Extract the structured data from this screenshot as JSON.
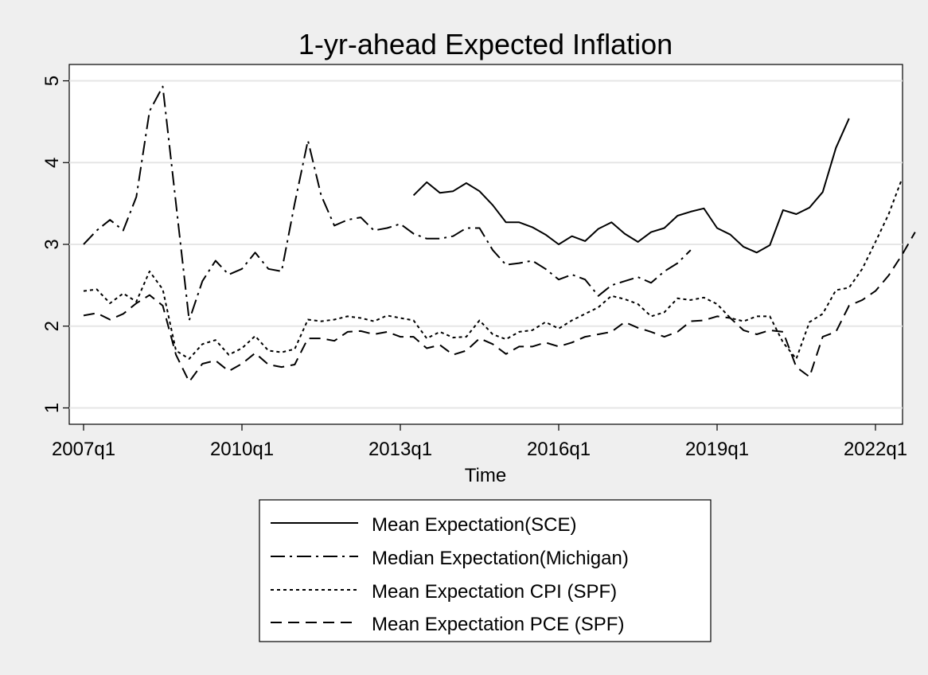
{
  "chart_data": {
    "type": "line",
    "title": "1-yr-ahead Expected Inflation",
    "xlabel": "Time",
    "ylabel": "",
    "x_tick_labels": [
      "2007q1",
      "2010q1",
      "2013q1",
      "2016q1",
      "2019q1",
      "2022q1"
    ],
    "y_tick_labels": [
      "1",
      "2",
      "3",
      "4",
      "5"
    ],
    "y_ticks": [
      1,
      2,
      3,
      4,
      5
    ],
    "ylim": [
      0.8,
      5.2
    ],
    "xlim": [
      "2007q1",
      "2022q2"
    ],
    "grid": true,
    "legend_position": "bottom",
    "series": [
      {
        "name": "Mean Expectation(SCE)",
        "style": "solid",
        "start": "2013q2",
        "values": [
          3.6,
          3.76,
          3.63,
          3.65,
          3.75,
          3.65,
          3.48,
          3.27,
          3.27,
          3.21,
          3.12,
          3.0,
          3.1,
          3.04,
          3.19,
          3.27,
          3.13,
          3.03,
          3.15,
          3.2,
          3.35,
          3.4,
          3.44,
          3.2,
          3.12,
          2.97,
          2.9,
          2.99,
          3.42,
          3.37,
          3.45,
          3.64,
          4.18,
          4.54
        ]
      },
      {
        "name": "Median Expectation(Michigan)",
        "style": "dashdot",
        "start": "2007q1",
        "values": [
          3.0,
          3.17,
          3.3,
          3.17,
          3.58,
          4.63,
          4.93,
          3.5,
          2.07,
          2.55,
          2.8,
          2.63,
          2.7,
          2.9,
          2.7,
          2.67,
          3.5,
          4.27,
          3.6,
          3.23,
          3.3,
          3.33,
          3.17,
          3.2,
          3.25,
          3.13,
          3.07,
          3.07,
          3.1,
          3.2,
          3.2,
          2.93,
          2.75,
          2.77,
          2.8,
          2.7,
          2.57,
          2.63,
          2.57,
          2.37,
          2.5,
          2.55,
          2.6,
          2.53,
          2.67,
          2.77,
          2.93
        ]
      },
      {
        "name": "Mean Expectation CPI (SPF)",
        "style": "dotted",
        "start": "2007q1",
        "values": [
          2.43,
          2.45,
          2.28,
          2.4,
          2.3,
          2.67,
          2.45,
          1.7,
          1.6,
          1.78,
          1.83,
          1.65,
          1.73,
          1.88,
          1.7,
          1.68,
          1.72,
          2.08,
          2.06,
          2.08,
          2.12,
          2.1,
          2.06,
          2.13,
          2.1,
          2.07,
          1.85,
          1.93,
          1.86,
          1.87,
          2.07,
          1.9,
          1.84,
          1.93,
          1.95,
          2.05,
          1.97,
          2.07,
          2.15,
          2.23,
          2.37,
          2.33,
          2.27,
          2.12,
          2.17,
          2.34,
          2.32,
          2.35,
          2.27,
          2.1,
          2.06,
          2.12,
          2.12,
          1.8,
          1.6,
          2.05,
          2.15,
          2.44,
          2.47,
          2.7,
          3.03,
          3.37,
          3.8
        ]
      },
      {
        "name": "Mean Expectation PCE (SPF)",
        "style": "dashed",
        "start": "2007q1",
        "values": [
          2.13,
          2.16,
          2.08,
          2.15,
          2.28,
          2.38,
          2.25,
          1.65,
          1.32,
          1.54,
          1.58,
          1.45,
          1.54,
          1.67,
          1.53,
          1.5,
          1.53,
          1.85,
          1.85,
          1.82,
          1.93,
          1.94,
          1.9,
          1.93,
          1.87,
          1.87,
          1.73,
          1.77,
          1.65,
          1.7,
          1.85,
          1.78,
          1.66,
          1.75,
          1.75,
          1.8,
          1.75,
          1.8,
          1.87,
          1.9,
          1.93,
          2.05,
          1.98,
          1.93,
          1.87,
          1.93,
          2.06,
          2.07,
          2.12,
          2.1,
          1.95,
          1.9,
          1.95,
          1.93,
          1.5,
          1.38,
          1.87,
          1.93,
          2.25,
          2.32,
          2.43,
          2.62,
          2.87,
          3.15
        ]
      }
    ]
  }
}
